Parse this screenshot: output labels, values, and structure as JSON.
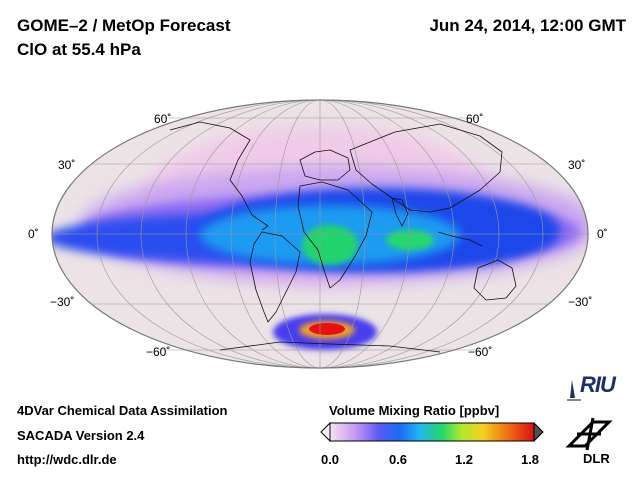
{
  "header": {
    "title_line1": "GOME–2 / MetOp Forecast",
    "title_line2": "ClO at 55.4 hPa",
    "datetime": "Jun 24, 2014, 12:00 GMT"
  },
  "map": {
    "projection": "Mollweide",
    "latitude_labels": {
      "n60": "60˚",
      "n30": "30˚",
      "eq": "0˚",
      "s30": "−30˚",
      "s60": "−60˚"
    },
    "colors": {
      "background": "#ece3e6",
      "low": "#f0d8ea",
      "medium": "#1c62f5",
      "high": "#14d05a",
      "peak": "#e81010"
    }
  },
  "colorbar": {
    "title": "Volume Mixing Ratio [ppbv]",
    "ticks": [
      "0.0",
      "0.6",
      "1.2",
      "1.8"
    ],
    "range": [
      0.0,
      1.8
    ]
  },
  "footer": {
    "line1": "4DVar Chemical Data Assimilation",
    "line2": "SACADA Version 2.4",
    "line3": "http://wdc.dlr.de"
  },
  "logos": {
    "riu": "RIU",
    "dlr": "DLR"
  }
}
